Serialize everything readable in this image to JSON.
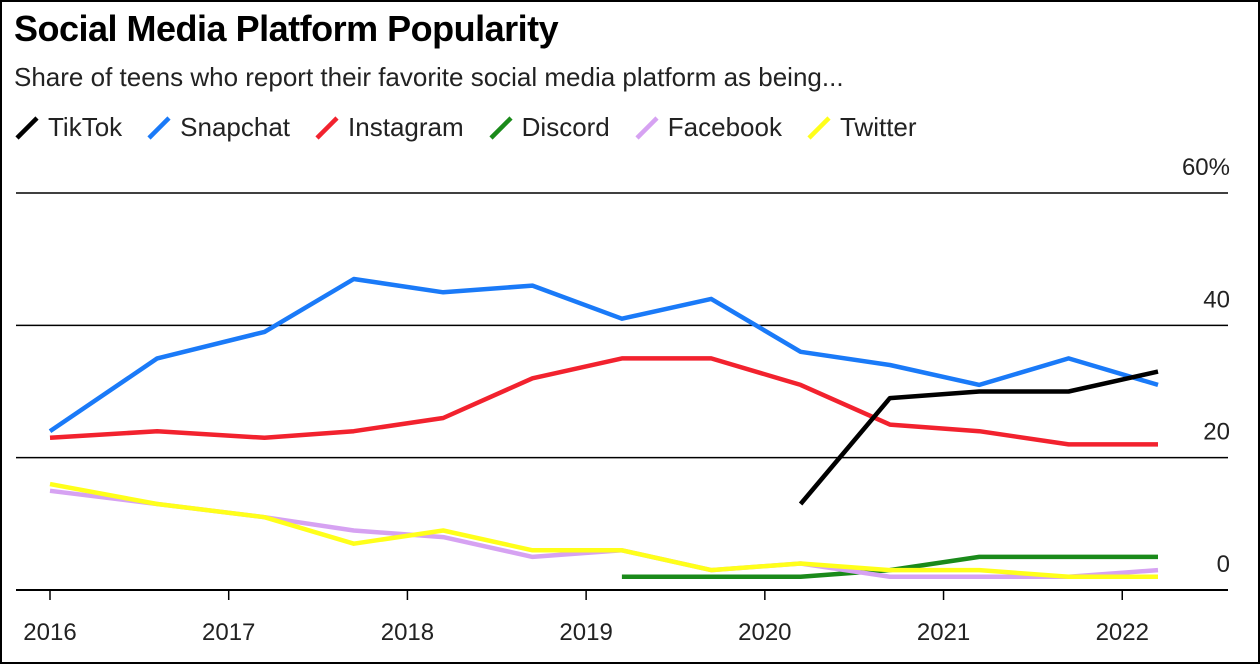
{
  "chart_data": {
    "type": "line",
    "title": "Social Media Platform Popularity",
    "subtitle": "Share of teens who report their favorite social media platform as being...",
    "x_ticks": [
      "2016",
      "2017",
      "2018",
      "2019",
      "2020",
      "2021",
      "2022"
    ],
    "y_ticks": [
      "0",
      "20",
      "40",
      "60%"
    ],
    "ylim": [
      0,
      60
    ],
    "xlim": [
      2016,
      2022.2
    ],
    "grid": true,
    "legend_position": "top-left",
    "series": [
      {
        "name": "TikTok",
        "color": "#000000",
        "x": [
          2020.2,
          2020.7,
          2021.2,
          2021.7,
          2022.2
        ],
        "y": [
          13,
          29,
          30,
          30,
          33
        ]
      },
      {
        "name": "Snapchat",
        "color": "#1a7af8",
        "x": [
          2016,
          2016.6,
          2017.2,
          2017.7,
          2018.2,
          2018.7,
          2019.2,
          2019.7,
          2020.2,
          2020.7,
          2021.2,
          2021.7,
          2022.2
        ],
        "y": [
          24,
          35,
          39,
          47,
          45,
          46,
          41,
          44,
          36,
          34,
          31,
          35,
          31
        ]
      },
      {
        "name": "Instagram",
        "color": "#f2222e",
        "x": [
          2016,
          2016.6,
          2017.2,
          2017.7,
          2018.2,
          2018.7,
          2019.2,
          2019.7,
          2020.2,
          2020.7,
          2021.2,
          2021.7,
          2022.2
        ],
        "y": [
          23,
          24,
          23,
          24,
          26,
          32,
          35,
          35,
          31,
          25,
          24,
          22,
          22
        ]
      },
      {
        "name": "Discord",
        "color": "#1a8a1a",
        "x": [
          2019.2,
          2019.7,
          2020.2,
          2020.7,
          2021.2,
          2021.7,
          2022.2
        ],
        "y": [
          2,
          2,
          2,
          3,
          5,
          5,
          5
        ]
      },
      {
        "name": "Facebook",
        "color": "#d6a2f2",
        "x": [
          2016,
          2016.6,
          2017.2,
          2017.7,
          2018.2,
          2018.7,
          2019.2,
          2019.7,
          2020.2,
          2020.7,
          2021.2,
          2021.7,
          2022.2
        ],
        "y": [
          15,
          13,
          11,
          9,
          8,
          5,
          6,
          3,
          4,
          2,
          2,
          2,
          3
        ]
      },
      {
        "name": "Twitter",
        "color": "#ffff1a",
        "x": [
          2016,
          2016.6,
          2017.2,
          2017.7,
          2018.2,
          2018.7,
          2019.2,
          2019.7,
          2020.2,
          2020.7,
          2021.2,
          2021.7,
          2022.2
        ],
        "y": [
          16,
          13,
          11,
          7,
          9,
          6,
          6,
          3,
          4,
          3,
          3,
          2,
          2
        ]
      }
    ]
  }
}
